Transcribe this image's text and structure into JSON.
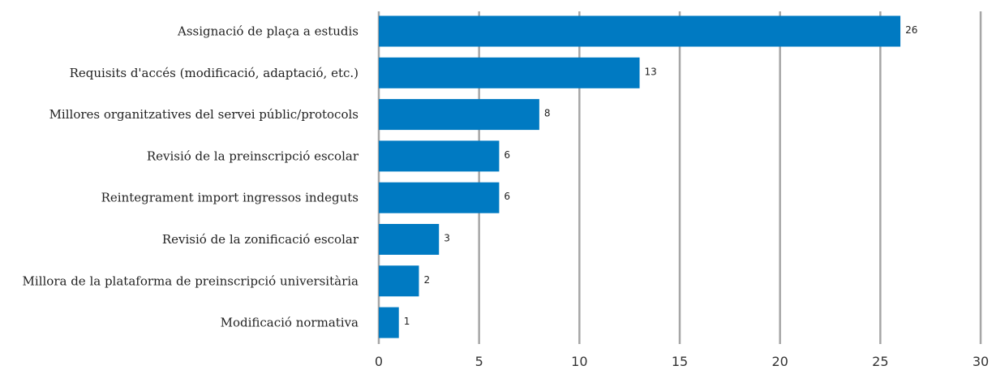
{
  "chart_data": {
    "type": "bar",
    "orientation": "horizontal",
    "title": "",
    "xlabel": "",
    "ylabel": "",
    "xlim": [
      0,
      30
    ],
    "x_ticks": [
      "0",
      "5",
      "10",
      "15",
      "20",
      "25",
      "30"
    ],
    "grid": "vertical",
    "legend": "none",
    "bar_color": "#007ac2",
    "categories": [
      "Assignació de plaça a estudis",
      "Requisits d'accés (modificació, adaptació, etc.)",
      "Millores organitzatives del servei públic/protocols",
      "Revisió de la preinscripció escolar",
      "Reintegrament import ingressos indeguts",
      "Revisió de la zonificació escolar",
      "Millora de la plataforma de preinscripció universitària",
      "Modificació normativa"
    ],
    "values": [
      26,
      13,
      8,
      6,
      6,
      3,
      2,
      1
    ]
  }
}
